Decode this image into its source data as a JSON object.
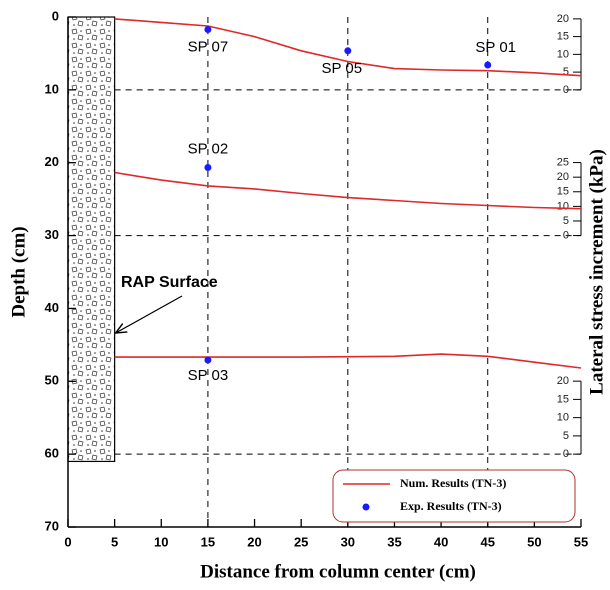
{
  "chart_data": {
    "type": "line",
    "xlabel": "Distance from column center (cm)",
    "ylabel": "Depth (cm)",
    "y2label": "Lateral stress increment (kPa)",
    "xlim": [
      0,
      55
    ],
    "xticks": [
      0,
      5,
      10,
      15,
      20,
      25,
      30,
      35,
      40,
      45,
      50,
      55
    ],
    "ylim": [
      0,
      70
    ],
    "yticks": [
      0,
      10,
      20,
      30,
      40,
      50,
      60,
      70
    ],
    "y_inverted": true,
    "rap_column": {
      "width": 5,
      "depth": 61
    },
    "annotation": "RAP Surface",
    "legend": "lower right",
    "series": [
      {
        "name": "Num. Results (TN-3)",
        "color": "#e0282a"
      },
      {
        "name": "Exp. Results (TN-3)",
        "color": "#1a1aff"
      }
    ],
    "panels": [
      {
        "zero_depth": 10,
        "y2lim": [
          0,
          20
        ],
        "y2ticks": [
          0,
          5,
          10,
          15,
          20
        ],
        "line": {
          "x": [
            5,
            10,
            15,
            20,
            25,
            30,
            35,
            40,
            45,
            50,
            55
          ],
          "values": [
            20,
            19,
            18,
            15,
            11,
            8,
            6,
            5.6,
            5.4,
            4.8,
            4
          ]
        },
        "points": {
          "x": [
            15,
            30,
            45
          ],
          "values": [
            17,
            11,
            7
          ],
          "labels": [
            "SP 07",
            "SP 05",
            "SP 01"
          ]
        }
      },
      {
        "zero_depth": 30,
        "y2lim": [
          0,
          25
        ],
        "y2ticks": [
          0,
          5,
          10,
          15,
          20,
          25
        ],
        "line": {
          "x": [
            5,
            10,
            15,
            20,
            25,
            30,
            35,
            40,
            45,
            50,
            55
          ],
          "values": [
            21.6,
            19,
            17,
            16,
            14.4,
            13,
            12,
            11,
            10.3,
            9.6,
            9.2
          ]
        },
        "points": {
          "x": [
            15
          ],
          "values": [
            23.3
          ],
          "labels": [
            "SP 02"
          ]
        }
      },
      {
        "zero_depth": 60,
        "y2lim": [
          0,
          20
        ],
        "y2ticks": [
          0,
          5,
          10,
          15,
          20
        ],
        "line": {
          "x": [
            5,
            15,
            25,
            35,
            40,
            45,
            50,
            55
          ],
          "values": [
            26.6,
            26.6,
            26.6,
            26.8,
            27.4,
            26.8,
            25.2,
            23.6
          ]
        },
        "points": {
          "x": [
            15
          ],
          "values": [
            25.8
          ],
          "labels": [
            "SP 03"
          ]
        }
      }
    ]
  }
}
